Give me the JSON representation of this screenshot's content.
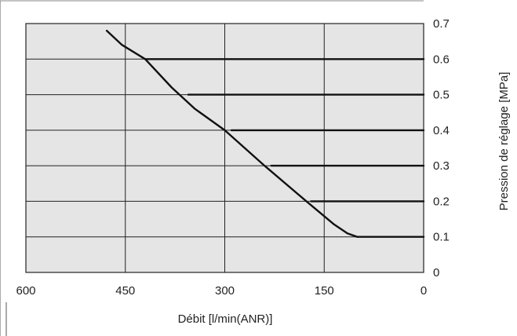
{
  "chart_data": {
    "type": "line",
    "xlabel": "Débit [l/min(ANR)]",
    "ylabel": "Pression de réglage [MPa]",
    "xlim": [
      600,
      0
    ],
    "ylim": [
      0,
      0.7
    ],
    "x_ticks": [
      "600",
      "450",
      "300",
      "150",
      "0"
    ],
    "y_ticks": [
      "0",
      "0.1",
      "0.2",
      "0.3",
      "0.4",
      "0.5",
      "0.6",
      "0.7"
    ],
    "grid": true,
    "plot_background": "#e5e5e5",
    "line_color": "#111111",
    "series": [
      {
        "name": "",
        "x": [
          478,
          455,
          420,
          380,
          345,
          300,
          240,
          180,
          135,
          115,
          100
        ],
        "y": [
          0.68,
          0.64,
          0.6,
          0.52,
          0.46,
          0.4,
          0.3,
          0.205,
          0.135,
          0.11,
          0.1
        ]
      },
      {
        "name": "",
        "x": [
          420,
          0
        ],
        "y": [
          0.6,
          0.6
        ]
      },
      {
        "name": "",
        "x": [
          355,
          0
        ],
        "y": [
          0.5,
          0.5
        ]
      },
      {
        "name": "",
        "x": [
          290,
          0
        ],
        "y": [
          0.4,
          0.4
        ]
      },
      {
        "name": "",
        "x": [
          230,
          0
        ],
        "y": [
          0.3,
          0.3
        ]
      },
      {
        "name": "",
        "x": [
          170,
          0
        ],
        "y": [
          0.2,
          0.2
        ]
      },
      {
        "name": "",
        "x": [
          100,
          0
        ],
        "y": [
          0.1,
          0.1
        ]
      }
    ]
  }
}
